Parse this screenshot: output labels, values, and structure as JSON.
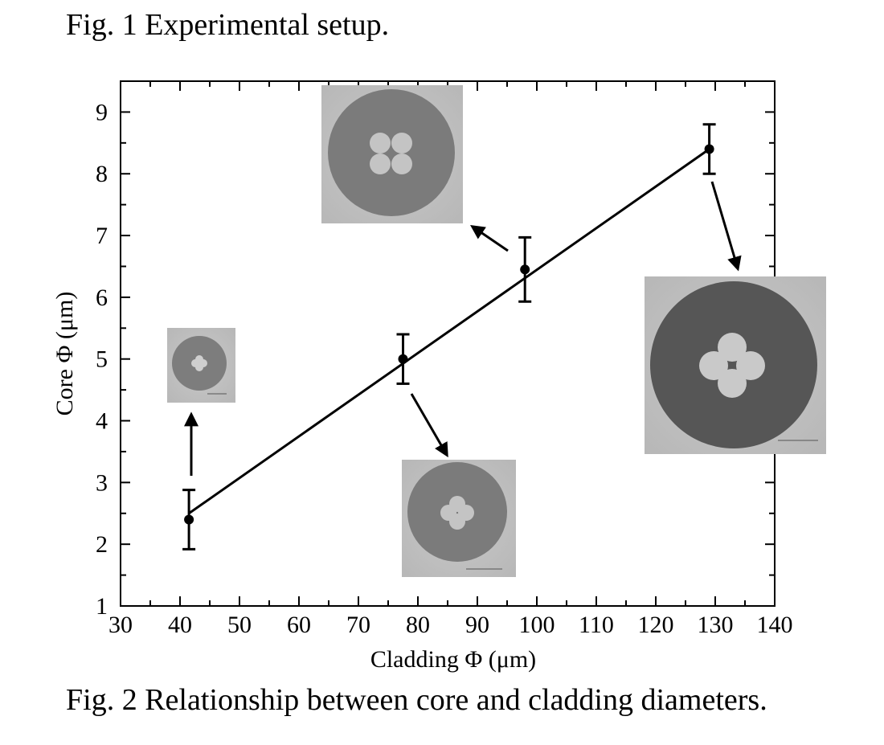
{
  "captions": {
    "top": "Fig. 1 Experimental setup.",
    "bottom": "Fig. 2 Relationship between core and cladding diameters."
  },
  "chart_data": {
    "type": "scatter",
    "xlabel": "Cladding Φ (μm)",
    "ylabel": "Core Φ (μm)",
    "xlim": [
      30,
      140
    ],
    "ylim": [
      1,
      9.5
    ],
    "xticks": [
      30,
      40,
      50,
      60,
      70,
      80,
      90,
      100,
      110,
      120,
      130,
      140
    ],
    "yticks": [
      1,
      2,
      3,
      4,
      5,
      6,
      7,
      8,
      9
    ],
    "points": [
      {
        "x": 41.5,
        "y": 2.4,
        "err": 0.48
      },
      {
        "x": 77.5,
        "y": 5.0,
        "err": 0.4
      },
      {
        "x": 98.0,
        "y": 6.45,
        "err": 0.52
      },
      {
        "x": 129.0,
        "y": 8.4,
        "err": 0.4
      }
    ],
    "fit_line": {
      "x": [
        41.5,
        129.0
      ],
      "y": [
        2.5,
        8.4
      ]
    },
    "grid": false,
    "insets": [
      {
        "point": 0,
        "description": "fiber cross-section micrograph"
      },
      {
        "point": 1,
        "description": "fiber cross-section micrograph"
      },
      {
        "point": 2,
        "description": "fiber cross-section micrograph"
      },
      {
        "point": 3,
        "description": "fiber cross-section micrograph"
      }
    ]
  }
}
